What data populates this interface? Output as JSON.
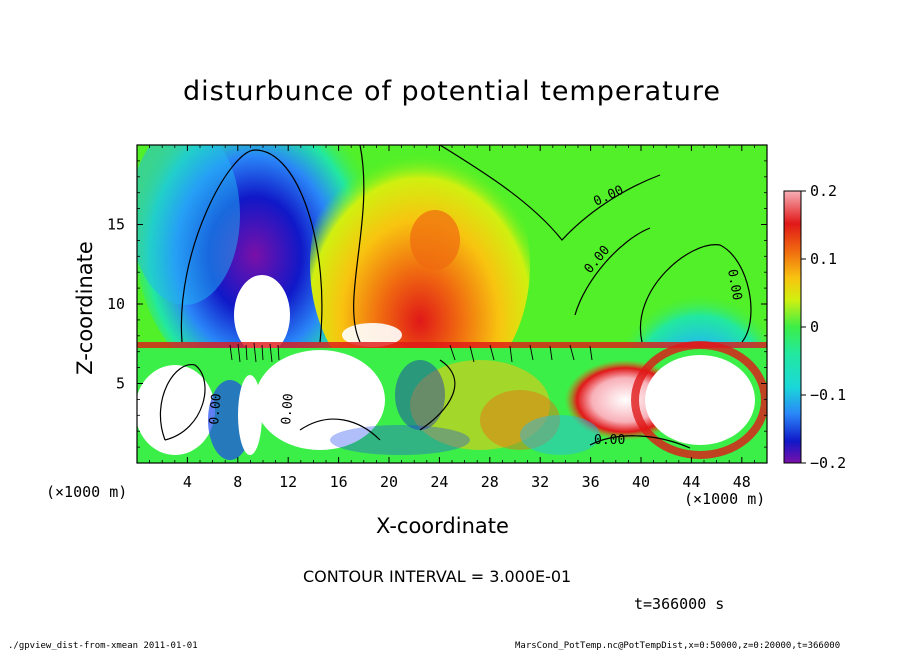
{
  "chart_data": {
    "type": "heatmap",
    "title": "disturbunce of potential temperature",
    "xlabel": "X-coordinate",
    "ylabel": "Z-coordinate",
    "x_unit_label": "(×1000 m)",
    "xlim": [
      0,
      50
    ],
    "ylim": [
      0,
      20
    ],
    "x_ticks": [
      4,
      8,
      12,
      16,
      20,
      24,
      28,
      32,
      36,
      40,
      44,
      48
    ],
    "y_ticks": [
      5,
      10,
      15
    ],
    "colorbar": {
      "range": [
        -0.2,
        0.2
      ],
      "ticks": [
        0.2,
        0.1,
        0,
        -0.1,
        -0.2
      ],
      "tick_labels": [
        "0.2",
        "0.1",
        "0",
        "−0.1",
        "−0.2"
      ],
      "colors": [
        "#7a10a8",
        "#3c0cb0",
        "#1018c8",
        "#1c48ee",
        "#2a86f8",
        "#22b8f4",
        "#1ad8d8",
        "#22e8a0",
        "#3cee48",
        "#52f028",
        "#8ef018",
        "#d0f010",
        "#f6e810",
        "#f8c410",
        "#f49810",
        "#f06a10",
        "#ec3a12",
        "#e01818",
        "#f06a7a",
        "#f8b0b8"
      ]
    },
    "contour_labels": [
      "0.00",
      "0.00",
      "0.00",
      "0.00",
      "0.00",
      "0.00"
    ],
    "contour_interval": "CONTOUR INTERVAL = 3.000E-01",
    "time_label": "t=366000 s",
    "footer_left": "./gpview_dist-from-xmean   2011-01-01",
    "footer_right": "MarsCond_PotTemp.nc@PotTempDist,x=0:50000,z=0:20000,t=366000"
  }
}
